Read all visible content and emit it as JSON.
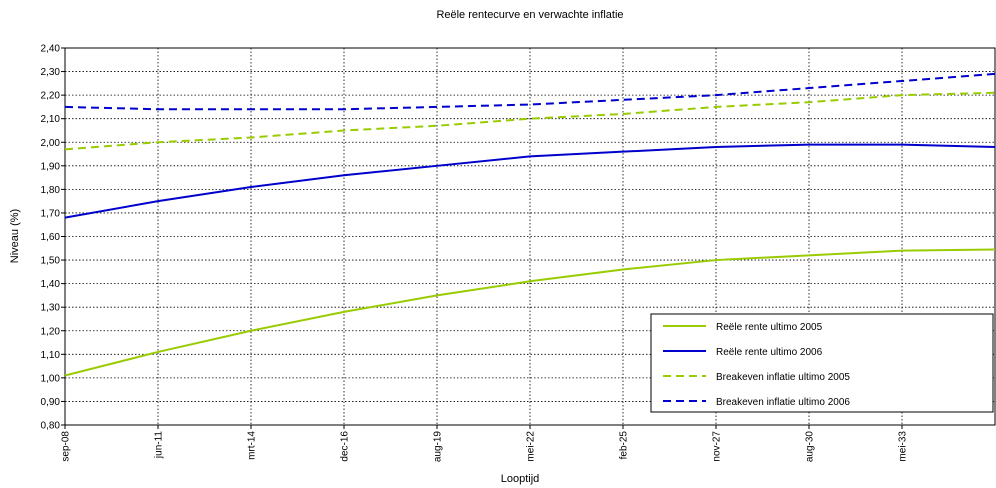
{
  "chart_data": {
    "type": "line",
    "title": "Reële rentecurve en verwachte inflatie",
    "x_label": "Looptijd",
    "y_label": "Niveau (%)",
    "categories": [
      "sep-08",
      "jun-11",
      "mrt-14",
      "dec-16",
      "aug-19",
      "mei-22",
      "feb-25",
      "nov-27",
      "aug-30",
      "mei-33",
      null
    ],
    "series": [
      {
        "name": "Reële rente ultimo 2005",
        "color": "#99cc00",
        "style": "solid",
        "values": [
          1.01,
          1.11,
          1.2,
          1.28,
          1.35,
          1.41,
          1.46,
          1.5,
          1.52,
          1.54,
          1.545
        ]
      },
      {
        "name": "Reële rente ultimo 2006",
        "color": "#0000cc",
        "style": "solid",
        "values": [
          1.68,
          1.75,
          1.81,
          1.86,
          1.9,
          1.94,
          1.96,
          1.98,
          1.99,
          1.99,
          1.98
        ]
      },
      {
        "name": "Breakeven inflatie ultimo 2005",
        "color": "#99cc00",
        "style": "dashed",
        "values": [
          1.97,
          2.0,
          2.02,
          2.05,
          2.07,
          2.1,
          2.12,
          2.15,
          2.17,
          2.2,
          2.21
        ]
      },
      {
        "name": "Breakeven inflatie ultimo 2006",
        "color": "#0000cc",
        "style": "dashed",
        "values": [
          2.15,
          2.14,
          2.14,
          2.14,
          2.15,
          2.16,
          2.18,
          2.2,
          2.23,
          2.26,
          2.29
        ]
      }
    ],
    "ylim": [
      0.8,
      2.4
    ],
    "yticks": [
      {
        "value": 0.8,
        "label": "0,80"
      },
      {
        "value": 0.9,
        "label": "0,90"
      },
      {
        "value": 1.0,
        "label": "1,00"
      },
      {
        "value": 1.1,
        "label": "1,10"
      },
      {
        "value": 1.2,
        "label": "1,20"
      },
      {
        "value": 1.3,
        "label": "1,30"
      },
      {
        "value": 1.4,
        "label": "1,40"
      },
      {
        "value": 1.5,
        "label": "1,50"
      },
      {
        "value": 1.6,
        "label": "1,60"
      },
      {
        "value": 1.7,
        "label": "1,70"
      },
      {
        "value": 1.8,
        "label": "1,80"
      },
      {
        "value": 1.9,
        "label": "1,90"
      },
      {
        "value": 2.0,
        "label": "2,00"
      },
      {
        "value": 2.1,
        "label": "2,10"
      },
      {
        "value": 2.2,
        "label": "2,20"
      },
      {
        "value": 2.3,
        "label": "2,30"
      },
      {
        "value": 2.4,
        "label": "2,40"
      }
    ],
    "grid": true,
    "legend": "lower right"
  }
}
